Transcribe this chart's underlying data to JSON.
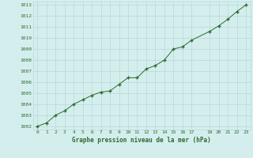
{
  "x": [
    0,
    1,
    2,
    3,
    4,
    5,
    6,
    7,
    8,
    9,
    10,
    11,
    12,
    13,
    14,
    15,
    16,
    17,
    19,
    20,
    21,
    22,
    23
  ],
  "y": [
    1002.0,
    1002.3,
    1003.0,
    1003.4,
    1004.0,
    1004.4,
    1004.8,
    1005.1,
    1005.2,
    1005.8,
    1006.4,
    1006.4,
    1007.2,
    1007.5,
    1008.0,
    1009.0,
    1009.2,
    1009.8,
    1010.6,
    1011.1,
    1011.7,
    1012.4,
    1013.0
  ],
  "xlim": [
    -0.5,
    23.5
  ],
  "ylim": [
    1001.7,
    1013.3
  ],
  "yticks": [
    1002,
    1003,
    1004,
    1005,
    1006,
    1007,
    1008,
    1009,
    1010,
    1011,
    1012,
    1013
  ],
  "xticks": [
    0,
    1,
    2,
    3,
    4,
    5,
    6,
    7,
    8,
    9,
    10,
    11,
    12,
    13,
    14,
    15,
    16,
    17,
    19,
    20,
    21,
    22,
    23
  ],
  "xlabel": "Graphe pression niveau de la mer (hPa)",
  "line_color": "#2d6a2d",
  "marker": "+",
  "bg_color": "#d4eeee",
  "grid_color": "#b8d8d8",
  "xlabel_color": "#2d6a2d",
  "tick_color": "#2d6a2d"
}
